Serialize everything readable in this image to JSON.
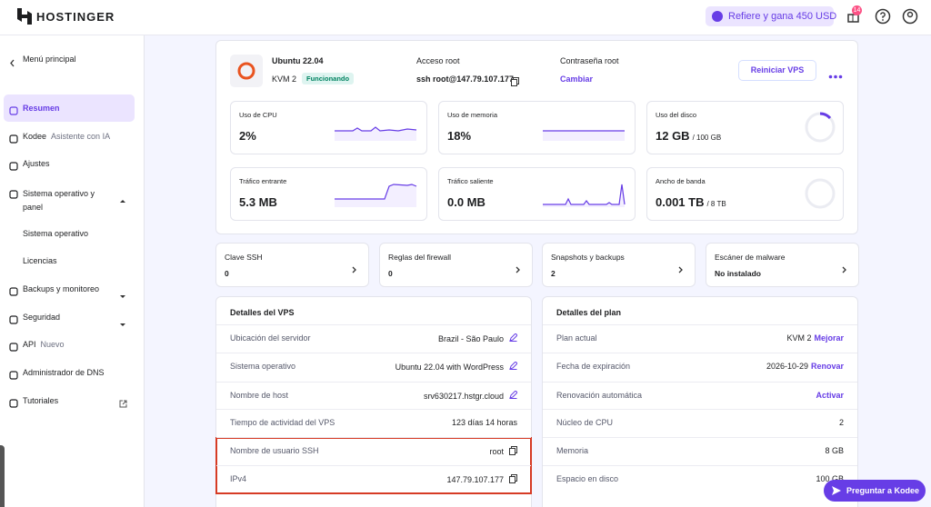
{
  "header": {
    "logo": "HOSTINGER",
    "referral": "Refiere y gana 450 USD",
    "notifications": "14"
  },
  "sidebar": {
    "back": "Menú principal",
    "items": [
      {
        "label": "Resumen"
      },
      {
        "label": "Kodee",
        "note": "Asistente con IA"
      },
      {
        "label": "Ajustes"
      },
      {
        "label": "Sistema operativo y panel"
      },
      {
        "label": "Sistema operativo"
      },
      {
        "label": "Licencias"
      },
      {
        "label": "Backups y monitoreo"
      },
      {
        "label": "Seguridad"
      },
      {
        "label": "API",
        "note": "Nuevo"
      },
      {
        "label": "Administrador de DNS"
      },
      {
        "label": "Tutoriales"
      }
    ]
  },
  "server": {
    "name": "Ubuntu 22.04",
    "plan": "KVM 2",
    "status": "Funcionando",
    "access_label": "Acceso root",
    "access_value": "ssh root@147.79.107.177",
    "password_label": "Contraseña root",
    "password_action": "Cambiar",
    "restart": "Reiniciar VPS"
  },
  "metrics": [
    {
      "label": "Uso de CPU",
      "value": "2%"
    },
    {
      "label": "Uso de memoria",
      "value": "18%"
    },
    {
      "label": "Uso del disco",
      "value": "12 GB",
      "unit": "/ 100 GB"
    },
    {
      "label": "Tráfico entrante",
      "value": "5.3 MB"
    },
    {
      "label": "Tráfico saliente",
      "value": "0.0 MB"
    },
    {
      "label": "Ancho de banda",
      "value": "0.001 TB",
      "unit": "/ 8 TB"
    }
  ],
  "quick": [
    {
      "label": "Clave SSH",
      "value": "0"
    },
    {
      "label": "Reglas del firewall",
      "value": "0"
    },
    {
      "label": "Snapshots y backups",
      "value": "2"
    },
    {
      "label": "Escáner de malware",
      "value": "No instalado"
    }
  ],
  "vps_details": {
    "title": "Detalles del VPS",
    "rows": [
      {
        "label": "Ubicación del servidor",
        "value": "Brazil - São Paulo"
      },
      {
        "label": "Sistema operativo",
        "value": "Ubuntu 22.04 with WordPress"
      },
      {
        "label": "Nombre de host",
        "value": "srv630217.hstgr.cloud"
      },
      {
        "label": "Tiempo de actividad del VPS",
        "value": "123 días 14 horas"
      },
      {
        "label": "Nombre de usuario SSH",
        "value": "root"
      },
      {
        "label": "IPv4",
        "value": "147.79.107.177"
      }
    ]
  },
  "plan_details": {
    "title": "Detalles del plan",
    "rows": [
      {
        "label": "Plan actual",
        "value": "KVM 2",
        "action": "Mejorar"
      },
      {
        "label": "Fecha de expiración",
        "value": "2026-10-29",
        "action": "Renovar"
      },
      {
        "label": "Renovación automática",
        "action": "Activar"
      },
      {
        "label": "Núcleo de CPU",
        "value": "2"
      },
      {
        "label": "Memoria",
        "value": "8 GB"
      },
      {
        "label": "Espacio en disco",
        "value": "100 GB"
      }
    ]
  },
  "assistant": "Preguntar a Kodee"
}
